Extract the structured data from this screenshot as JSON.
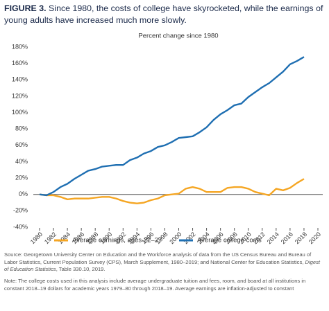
{
  "chart_data": {
    "type": "line",
    "figure_label": "FIGURE 3.",
    "title": "Since 1980, the costs of college have skyrocketed, while the earnings of young adults have increased much more slowly.",
    "subtitle": "Percent change since 1980",
    "x": [
      1980,
      1981,
      1982,
      1983,
      1984,
      1985,
      1986,
      1987,
      1988,
      1989,
      1990,
      1991,
      1992,
      1993,
      1994,
      1995,
      1996,
      1997,
      1998,
      1999,
      2000,
      2001,
      2002,
      2003,
      2004,
      2005,
      2006,
      2007,
      2008,
      2009,
      2010,
      2011,
      2012,
      2013,
      2014,
      2015,
      2016,
      2017,
      2018
    ],
    "series": [
      {
        "name": "Average earnings, ages 22–27",
        "color": "#f5a623",
        "values": [
          0,
          -1,
          -1,
          -3,
          -6,
          -5,
          -5,
          -5,
          -4,
          -3,
          -3,
          -5,
          -8,
          -10,
          -11,
          -10,
          -7,
          -5,
          -1,
          0,
          1,
          7,
          9,
          7,
          3,
          3,
          3,
          8,
          9,
          9,
          7,
          3,
          1,
          -1,
          7,
          5,
          8,
          14,
          19
        ]
      },
      {
        "name": "Average college costs",
        "color": "#1f6fb2",
        "values": [
          0,
          -1,
          3,
          9,
          13,
          19,
          24,
          29,
          31,
          34,
          35,
          36,
          36,
          42,
          45,
          50,
          53,
          58,
          60,
          64,
          69,
          70,
          71,
          76,
          82,
          91,
          98,
          103,
          109,
          111,
          119,
          125,
          131,
          136,
          143,
          150,
          159,
          163,
          168
        ]
      }
    ],
    "xlim": [
      1980,
      2020
    ],
    "xticks": [
      1980,
      1982,
      1984,
      1986,
      1988,
      1990,
      1992,
      1994,
      1996,
      1998,
      2000,
      2002,
      2004,
      2006,
      2008,
      2010,
      2012,
      2014,
      2016,
      2018,
      2020
    ],
    "ylim": [
      -40,
      180
    ],
    "yticks": [
      {
        "value": -40,
        "label": "-40%"
      },
      {
        "value": -20,
        "label": "-20%"
      },
      {
        "value": 0,
        "label": "0%"
      },
      {
        "value": 20,
        "label": "20%"
      },
      {
        "value": 40,
        "label": "40%"
      },
      {
        "value": 60,
        "label": "60%"
      },
      {
        "value": 80,
        "label": "80%"
      },
      {
        "value": 100,
        "label": "100%"
      },
      {
        "value": 120,
        "label": "120%"
      },
      {
        "value": 140,
        "label": "140%"
      },
      {
        "value": 160,
        "label": "160%"
      },
      {
        "value": 180,
        "label": "180%"
      }
    ],
    "grid": false,
    "legend": "bottom",
    "source": "Source: Georgetown University Center on Education and the Workforce analysis of data from the US Census Bureau and Bureau of Labor Statistics, Current Population Survey (CPS), March Supplement, 1980–2019; and National Center for Education Statistics, ",
    "source_italic": "Digest of Education Statistics",
    "source_end": ", Table 330.10, 2019.",
    "note": "Note: The college costs used in this analysis include average undergraduate tuition and fees, room, and board at all institutions in constant 2018–19 dollars for academic years 1979–80 through 2018–19. Average earnings are inflation-adjusted to constant"
  }
}
